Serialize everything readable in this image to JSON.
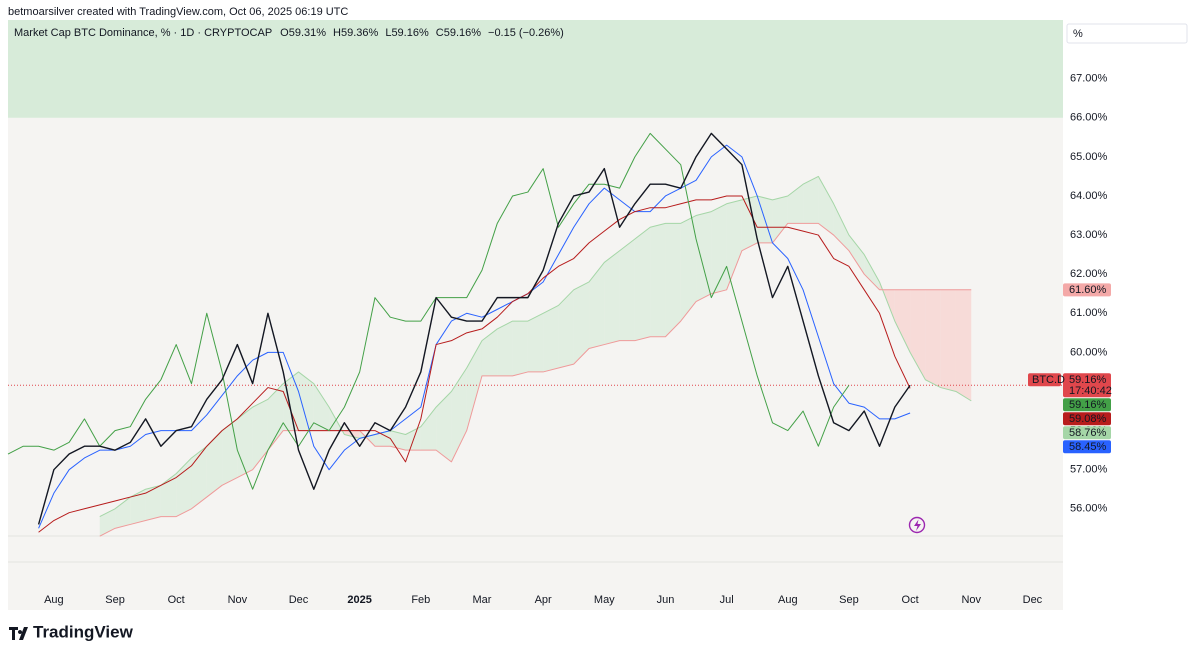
{
  "chart_data": {
    "type": "line",
    "header": "betmoarsilver created with TradingView.com, Oct 06, 2025 06:19 UTC",
    "symbol": "Market Cap BTC Dominance, % · 1D · CRYPTOCAP",
    "ohlc": [
      [
        "O",
        "59.31%"
      ],
      [
        "H",
        "59.36%"
      ],
      [
        "L",
        "59.16%"
      ],
      [
        "C",
        "59.16%"
      ],
      [
        "",
        "−0.15 (−0.26%)"
      ]
    ],
    "unit": "%",
    "footer": "TradingView",
    "categories": [
      null,
      null,
      null,
      "Aug",
      null,
      null,
      null,
      "Sep",
      null,
      null,
      null,
      "Oct",
      null,
      null,
      null,
      "Nov",
      null,
      null,
      null,
      "Dec",
      null,
      null,
      null,
      "2025",
      null,
      null,
      null,
      "Feb",
      null,
      null,
      null,
      "Mar",
      null,
      null,
      null,
      "Apr",
      null,
      null,
      null,
      "May",
      null,
      null,
      null,
      "Jun",
      null,
      null,
      null,
      "Jul",
      null,
      null,
      null,
      "Aug",
      null,
      null,
      null,
      "Sep",
      null,
      null,
      null,
      "Oct",
      null,
      null,
      null,
      "Nov",
      null,
      null,
      null,
      "Dec",
      null,
      null
    ],
    "ylim": [
      54,
      68.5
    ],
    "yticks": [
      {
        "value": 56,
        "label": "56.00%"
      },
      {
        "value": 57,
        "label": "57.00%"
      },
      {
        "value": 58,
        "label": "58.00%"
      },
      {
        "value": 59,
        "label": "59.00%"
      },
      {
        "value": 60,
        "label": "60.00%"
      },
      {
        "value": 61,
        "label": "61.00%"
      },
      {
        "value": 62,
        "label": "62.00%"
      },
      {
        "value": 63,
        "label": "63.00%"
      },
      {
        "value": 64,
        "label": "64.00%"
      },
      {
        "value": 65,
        "label": "65.00%"
      },
      {
        "value": 66,
        "label": "66.00%"
      },
      {
        "value": 67,
        "label": "67.00%"
      }
    ],
    "grid": false,
    "band": {
      "from": 66,
      "to": 68.5,
      "color": "#d7ebd9"
    },
    "cloud_color_up": "#dcecdc",
    "cloud_color_down": "#f7d4d1",
    "series": [
      {
        "color": "#131722",
        "width": 1.4,
        "values": [
          null,
          null,
          55.6,
          57.0,
          57.4,
          57.6,
          57.6,
          57.5,
          57.7,
          58.3,
          57.6,
          58.0,
          58.1,
          58.8,
          59.3,
          60.2,
          59.2,
          61.0,
          59.5,
          57.5,
          56.5,
          57.5,
          58.2,
          57.6,
          58.2,
          58.0,
          58.6,
          59.5,
          61.4,
          60.9,
          60.8,
          60.8,
          61.4,
          61.4,
          61.4,
          62.1,
          63.3,
          64.0,
          64.1,
          64.7,
          63.2,
          63.8,
          64.3,
          64.3,
          64.2,
          65.0,
          65.6,
          65.2,
          64.8,
          62.9,
          61.4,
          62.2,
          60.8,
          59.4,
          58.2,
          58.0,
          58.5,
          57.6,
          58.6,
          59.16,
          null,
          null,
          null,
          null,
          null,
          null,
          null,
          null,
          null,
          null
        ]
      },
      {
        "color": "#2962ff",
        "width": 1,
        "values": [
          null,
          null,
          55.5,
          56.4,
          57.0,
          57.3,
          57.5,
          57.5,
          57.6,
          57.9,
          58.0,
          58.0,
          58.0,
          58.4,
          58.9,
          59.4,
          59.8,
          60.0,
          60.0,
          59.0,
          57.6,
          57.0,
          57.5,
          57.8,
          57.9,
          58.0,
          58.3,
          58.6,
          60.2,
          60.8,
          61.0,
          60.9,
          61.1,
          61.3,
          61.5,
          61.8,
          62.5,
          63.2,
          63.8,
          64.2,
          63.9,
          63.6,
          63.6,
          64.0,
          64.2,
          64.4,
          65.0,
          65.3,
          65.0,
          64.0,
          62.8,
          62.4,
          61.6,
          60.4,
          59.2,
          58.7,
          58.6,
          58.3,
          58.3,
          58.45,
          null,
          null,
          null,
          null,
          null,
          null,
          null,
          null,
          null,
          null
        ]
      },
      {
        "color": "#b71c1c",
        "width": 1,
        "values": [
          null,
          null,
          55.4,
          55.7,
          55.9,
          56.0,
          56.1,
          56.2,
          56.3,
          56.4,
          56.6,
          56.8,
          57.1,
          57.6,
          58.0,
          58.3,
          58.7,
          59.1,
          59.0,
          58.0,
          58.0,
          58.0,
          58.0,
          58.0,
          58.0,
          57.8,
          57.2,
          58.3,
          60.2,
          60.3,
          60.5,
          60.6,
          60.9,
          61.3,
          61.5,
          61.9,
          62.2,
          62.4,
          62.8,
          63.1,
          63.4,
          63.6,
          63.7,
          63.7,
          63.8,
          63.9,
          63.9,
          64.0,
          64.0,
          63.2,
          63.2,
          63.2,
          63.1,
          63.0,
          62.4,
          62.2,
          61.6,
          61.0,
          59.9,
          59.08,
          null,
          null,
          null,
          null,
          null,
          null,
          null,
          null,
          null,
          null
        ]
      },
      {
        "color": "#43a047",
        "width": 1,
        "values": [
          57.4,
          57.6,
          57.6,
          57.5,
          57.7,
          58.3,
          57.6,
          58.0,
          58.1,
          58.8,
          59.3,
          60.2,
          59.2,
          61.0,
          59.5,
          57.5,
          56.5,
          57.5,
          58.2,
          57.6,
          58.2,
          58.0,
          58.6,
          59.5,
          61.4,
          60.9,
          60.8,
          60.8,
          61.4,
          61.4,
          61.4,
          62.1,
          63.3,
          64.0,
          64.1,
          64.7,
          63.2,
          63.8,
          64.3,
          64.3,
          64.2,
          65.0,
          65.6,
          65.2,
          64.8,
          62.9,
          61.4,
          62.2,
          60.8,
          59.4,
          58.2,
          58.0,
          58.5,
          57.6,
          58.6,
          59.16,
          null,
          null,
          null,
          null,
          null,
          null,
          null,
          null,
          null,
          null,
          null,
          null,
          null,
          null
        ]
      },
      {
        "color": "#a5d6a7",
        "width": 1,
        "kind": "cloud-upper",
        "values": [
          null,
          null,
          null,
          null,
          null,
          null,
          55.8,
          56.0,
          56.3,
          56.5,
          56.6,
          56.9,
          57.3,
          57.6,
          58.0,
          58.3,
          58.6,
          58.8,
          59.2,
          59.5,
          59.2,
          58.6,
          57.9,
          57.8,
          57.9,
          58.0,
          57.9,
          58.1,
          58.6,
          59.0,
          59.6,
          60.3,
          60.6,
          60.8,
          60.8,
          61.0,
          61.2,
          61.6,
          61.8,
          62.3,
          62.6,
          62.9,
          63.2,
          63.3,
          63.3,
          63.5,
          63.6,
          63.8,
          63.9,
          64.0,
          63.9,
          64.0,
          64.3,
          64.5,
          63.8,
          63.0,
          62.5,
          61.8,
          60.8,
          60.0,
          59.3,
          59.1,
          59.0,
          58.76,
          null,
          null,
          null,
          null,
          null,
          null
        ]
      },
      {
        "color": "#ef9a9a",
        "width": 1,
        "kind": "cloud-lower",
        "values": [
          null,
          null,
          null,
          null,
          null,
          null,
          55.3,
          55.5,
          55.6,
          55.7,
          55.8,
          55.8,
          56.0,
          56.3,
          56.6,
          56.8,
          57.0,
          57.5,
          58.0,
          58.0,
          58.0,
          58.0,
          58.0,
          58.0,
          57.6,
          57.6,
          57.5,
          57.5,
          57.5,
          57.2,
          58.0,
          59.4,
          59.4,
          59.4,
          59.5,
          59.5,
          59.6,
          59.7,
          60.1,
          60.2,
          60.3,
          60.3,
          60.4,
          60.4,
          60.8,
          61.3,
          61.5,
          61.6,
          62.6,
          62.8,
          62.8,
          63.3,
          63.3,
          63.3,
          63.0,
          62.6,
          62.0,
          61.6,
          61.6,
          61.6,
          61.6,
          61.6,
          61.6,
          61.6,
          null,
          null,
          null,
          null,
          null,
          null
        ]
      }
    ],
    "tags": [
      {
        "value": 61.6,
        "label": "61.60%",
        "color": "#f4a9a8",
        "text_color": "#b22833"
      },
      {
        "value": 59.16,
        "label": "59.16%",
        "sub": "17:40:42",
        "symbol": "BTC.D",
        "color": "#e0474c",
        "text_color": "#ffffff"
      },
      {
        "value": 59.16,
        "label": "59.16%",
        "color": "#43a047",
        "text_color": "#ffffff"
      },
      {
        "value": 59.08,
        "label": "59.08%",
        "color": "#b71c1c",
        "text_color": "#ffffff"
      },
      {
        "value": 58.76,
        "label": "58.76%",
        "color": "#a5d6a7",
        "text_color": "#131722"
      },
      {
        "value": 58.45,
        "label": "58.45%",
        "color": "#2962ff",
        "text_color": "#ffffff"
      }
    ]
  }
}
